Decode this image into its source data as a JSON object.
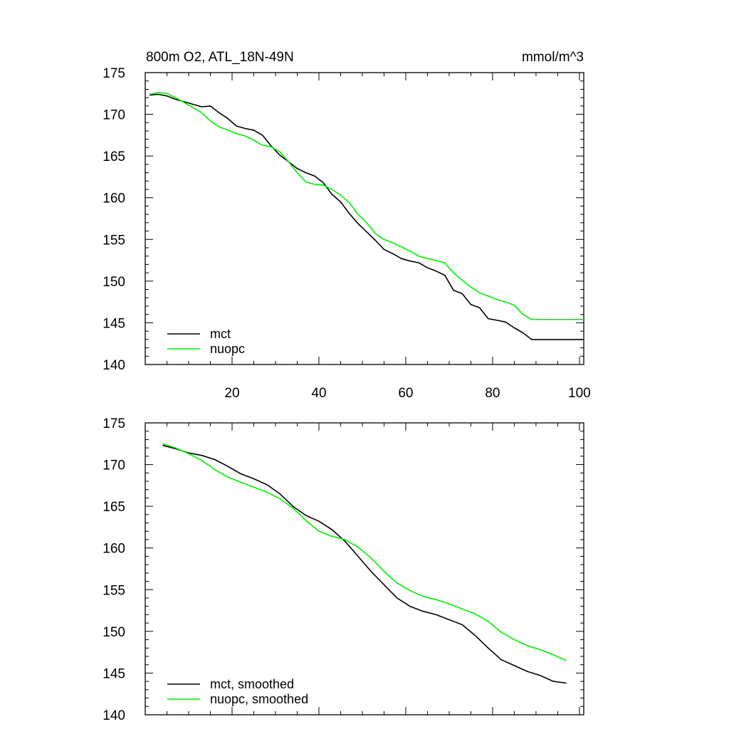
{
  "chart_data": [
    {
      "type": "line",
      "title_left": "800m O2, ATL_18N-49N",
      "title_right": "mmol/m^3",
      "xlim": [
        0,
        101
      ],
      "ylim": [
        140,
        175
      ],
      "xticks": [
        20,
        40,
        60,
        80,
        100
      ],
      "yticks": [
        140,
        145,
        150,
        155,
        160,
        165,
        170,
        175
      ],
      "show_x_tick_labels": true,
      "legend_position": "bottom-left",
      "series": [
        {
          "name": "mct",
          "color": "#000000",
          "x": [
            1,
            3,
            5,
            7,
            9,
            11,
            13,
            15,
            17,
            19,
            21,
            23,
            25,
            27,
            29,
            31,
            33,
            35,
            37,
            39,
            41,
            43,
            45,
            47,
            49,
            51,
            53,
            55,
            57,
            59,
            61,
            63,
            65,
            67,
            69,
            71,
            73,
            75,
            77,
            79,
            81,
            83,
            85,
            87,
            89,
            91,
            93,
            95,
            97,
            99,
            101
          ],
          "values": [
            172.3,
            172.4,
            172.2,
            171.8,
            171.5,
            171.2,
            170.9,
            171.0,
            170.2,
            169.5,
            168.6,
            168.3,
            168.1,
            167.5,
            166.2,
            165.1,
            164.3,
            163.5,
            163.0,
            162.6,
            161.8,
            160.4,
            159.5,
            158.1,
            156.9,
            155.9,
            154.9,
            153.8,
            153.3,
            152.7,
            152.4,
            152.2,
            151.6,
            151.2,
            150.7,
            148.9,
            148.5,
            147.2,
            146.8,
            145.5,
            145.3,
            145.1,
            144.4,
            143.8,
            143.0,
            143.0,
            143.0,
            143.0,
            143.0,
            143.0,
            143.0
          ]
        },
        {
          "name": "nuopc",
          "color": "#00ee00",
          "x": [
            1,
            3,
            5,
            7,
            9,
            11,
            13,
            15,
            17,
            19,
            21,
            23,
            25,
            27,
            29,
            31,
            33,
            35,
            37,
            39,
            41,
            43,
            45,
            47,
            49,
            51,
            53,
            55,
            57,
            59,
            61,
            63,
            65,
            67,
            69,
            71,
            73,
            75,
            77,
            79,
            81,
            83,
            85,
            87,
            89,
            91,
            93,
            95,
            97,
            99,
            101
          ],
          "values": [
            172.4,
            172.6,
            172.5,
            172.0,
            171.4,
            170.8,
            170.2,
            169.2,
            168.5,
            168.1,
            167.7,
            167.4,
            166.9,
            166.3,
            166.1,
            165.5,
            164.3,
            163.0,
            161.9,
            161.6,
            161.5,
            161.0,
            160.3,
            159.4,
            158.0,
            157.0,
            155.7,
            155.0,
            154.6,
            154.1,
            153.6,
            153.0,
            152.7,
            152.5,
            152.2,
            151.0,
            150.1,
            149.3,
            148.6,
            148.2,
            147.8,
            147.5,
            147.1,
            146.0,
            145.4,
            145.4,
            145.4,
            145.4,
            145.4,
            145.4,
            145.4
          ]
        }
      ]
    },
    {
      "type": "line",
      "xlim": [
        0,
        101
      ],
      "ylim": [
        140,
        175
      ],
      "xticks": [
        20,
        40,
        60,
        80,
        100
      ],
      "yticks": [
        140,
        145,
        150,
        155,
        160,
        165,
        170,
        175
      ],
      "show_x_tick_labels": false,
      "legend_position": "bottom-left",
      "series": [
        {
          "name": "mct, smoothed",
          "color": "#000000",
          "x": [
            4,
            7,
            10,
            13,
            16,
            19,
            22,
            25,
            28,
            31,
            34,
            37,
            40,
            43,
            46,
            49,
            52,
            55,
            58,
            61,
            64,
            67,
            70,
            73,
            76,
            79,
            82,
            85,
            88,
            91,
            94,
            97
          ],
          "values": [
            172.3,
            171.9,
            171.4,
            171.1,
            170.6,
            169.8,
            168.9,
            168.3,
            167.6,
            166.5,
            165.0,
            163.9,
            163.2,
            162.2,
            160.8,
            159.0,
            157.2,
            155.6,
            154.0,
            153.0,
            152.4,
            152.0,
            151.4,
            150.8,
            149.5,
            148.0,
            146.6,
            145.9,
            145.2,
            144.7,
            144.0,
            143.8
          ]
        },
        {
          "name": "nuopc, smoothed",
          "color": "#00ee00",
          "x": [
            4,
            7,
            10,
            13,
            16,
            19,
            22,
            25,
            28,
            31,
            34,
            37,
            40,
            43,
            46,
            49,
            52,
            55,
            58,
            61,
            64,
            67,
            70,
            73,
            76,
            79,
            82,
            85,
            88,
            91,
            94,
            97
          ],
          "values": [
            172.5,
            172.0,
            171.3,
            170.5,
            169.4,
            168.5,
            167.9,
            167.3,
            166.7,
            165.9,
            164.8,
            163.3,
            162.0,
            161.4,
            161.0,
            160.1,
            158.8,
            157.2,
            155.8,
            154.9,
            154.2,
            153.8,
            153.3,
            152.7,
            152.1,
            151.2,
            149.9,
            149.0,
            148.3,
            147.8,
            147.2,
            146.5
          ]
        }
      ]
    }
  ]
}
